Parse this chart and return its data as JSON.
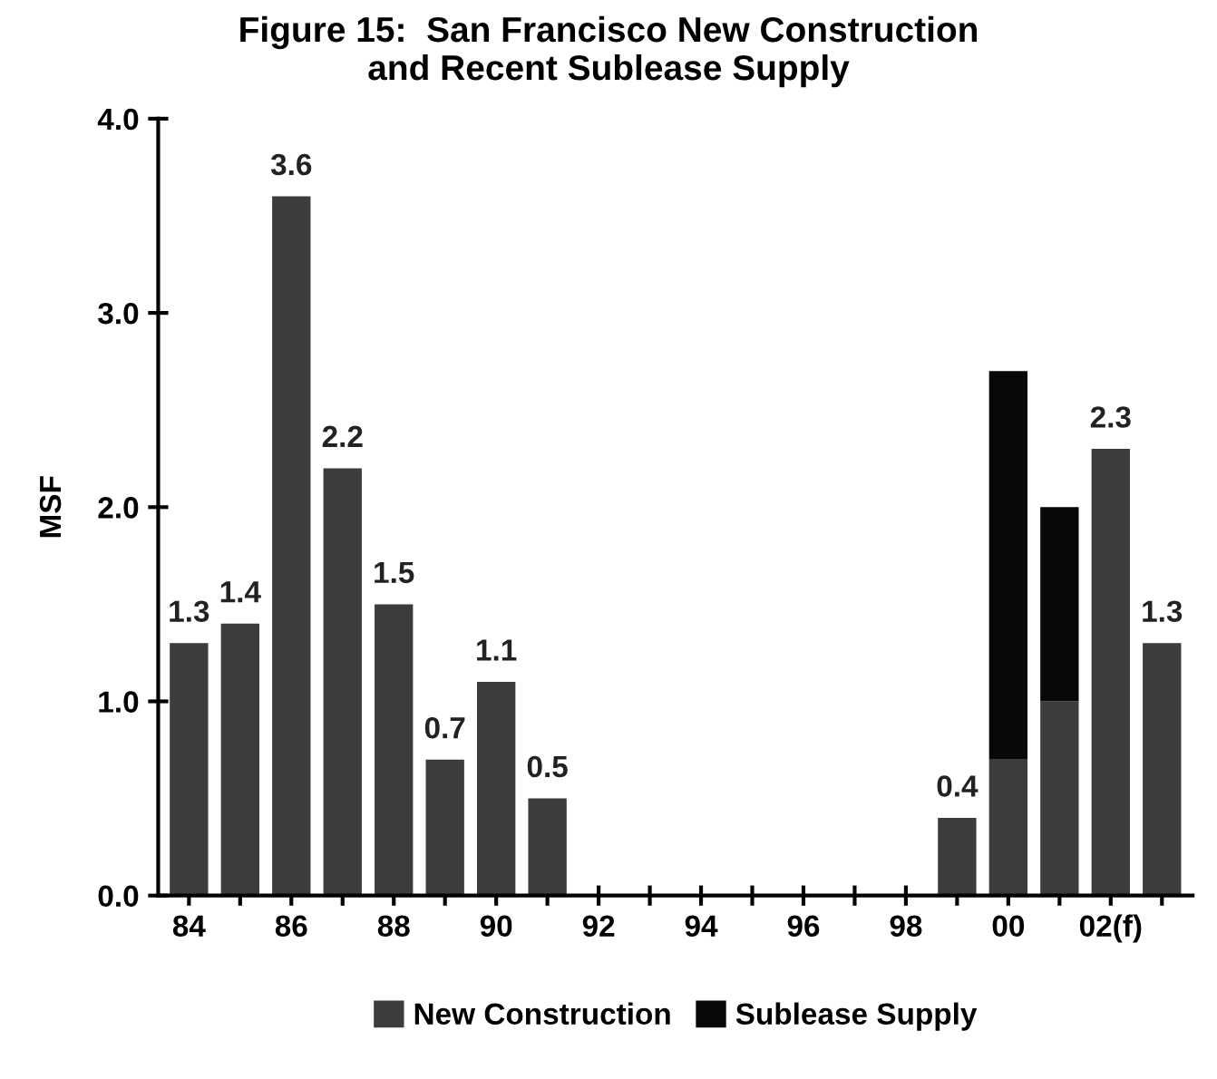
{
  "chart_data": {
    "type": "bar",
    "title": "Figure 15:  San Francisco New Construction\nand Recent Sublease Supply",
    "ylabel": "MSF",
    "categories": [
      "84",
      null,
      "86",
      null,
      "88",
      null,
      "90",
      null,
      "92",
      null,
      "94",
      null,
      "96",
      null,
      "98",
      null,
      "00",
      null,
      "02(f)",
      null
    ],
    "stacked": true,
    "series": [
      {
        "name": "New Construction",
        "color": "#3c3c3c",
        "values": [
          1.3,
          1.4,
          3.6,
          2.2,
          1.5,
          0.7,
          1.1,
          0.5,
          null,
          null,
          null,
          null,
          null,
          null,
          null,
          0.4,
          0.7,
          1.0,
          2.3,
          1.3
        ],
        "value_labels": [
          "1.3",
          "1.4",
          "3.6",
          "2.2",
          "1.5",
          "0.7",
          "1.1",
          "0.5",
          null,
          null,
          null,
          null,
          null,
          null,
          null,
          "0.4",
          null,
          null,
          "2.3",
          "1.3"
        ]
      },
      {
        "name": "Sublease Supply",
        "color": "#080808",
        "values": [
          null,
          null,
          null,
          null,
          null,
          null,
          null,
          null,
          null,
          null,
          null,
          null,
          null,
          null,
          null,
          null,
          2.0,
          1.0,
          null,
          null
        ]
      }
    ],
    "ylim": [
      0,
      4
    ],
    "yticks": [
      {
        "value": 0,
        "label": "0.0"
      },
      {
        "value": 1,
        "label": "1.0"
      },
      {
        "value": 2,
        "label": "2.0"
      },
      {
        "value": 3,
        "label": "3.0"
      },
      {
        "value": 4,
        "label": "4.0"
      }
    ],
    "grid": false,
    "legend": "bottom"
  }
}
